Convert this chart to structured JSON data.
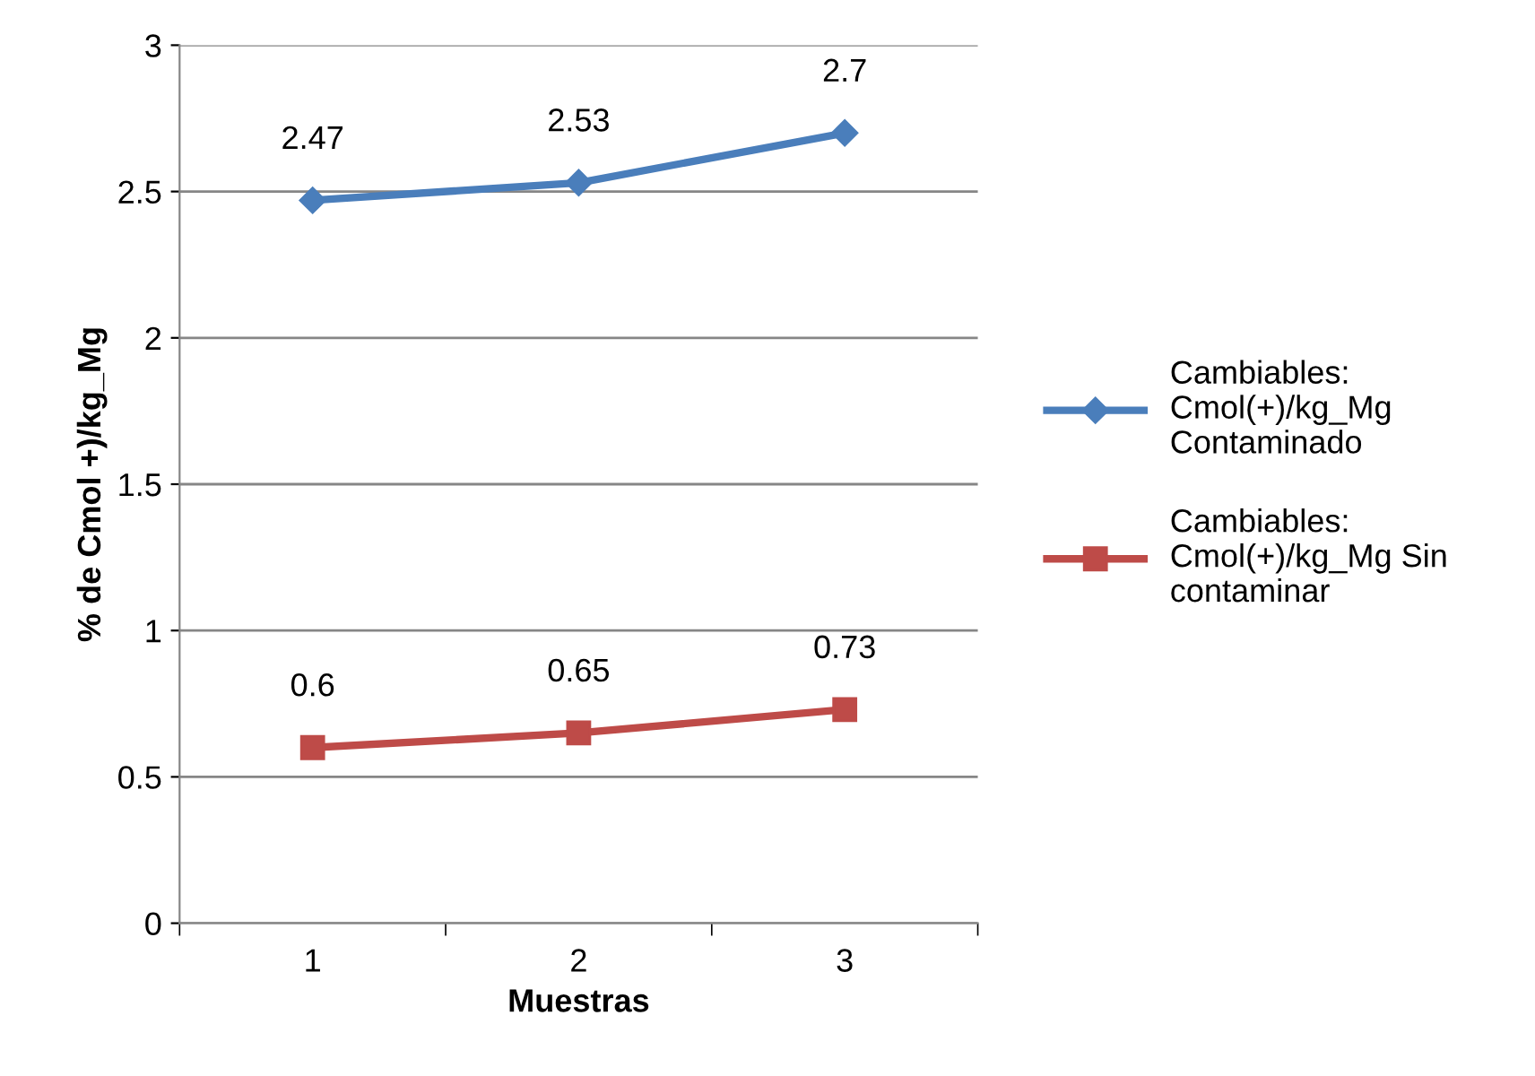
{
  "chart_data": {
    "type": "line",
    "xlabel": "Muestras",
    "ylabel": "% de Cmol +)/kg_Mg",
    "categories": [
      "1",
      "2",
      "3"
    ],
    "series": [
      {
        "name": "Cambiables: Cmol(+)/kg_Mg Contaminado",
        "color": "#4a7ebb",
        "marker": "diamond",
        "values": [
          2.47,
          2.53,
          2.7
        ]
      },
      {
        "name": "Cambiables: Cmol(+)/kg_Mg Sin contaminar",
        "color": "#be4b48",
        "marker": "square",
        "values": [
          0.6,
          0.65,
          0.73
        ]
      }
    ],
    "ylim": [
      0,
      3
    ],
    "yticks": [
      0,
      0.5,
      1,
      1.5,
      2,
      2.5,
      3
    ],
    "grid": "y",
    "legend": "right",
    "data_labels": true
  }
}
